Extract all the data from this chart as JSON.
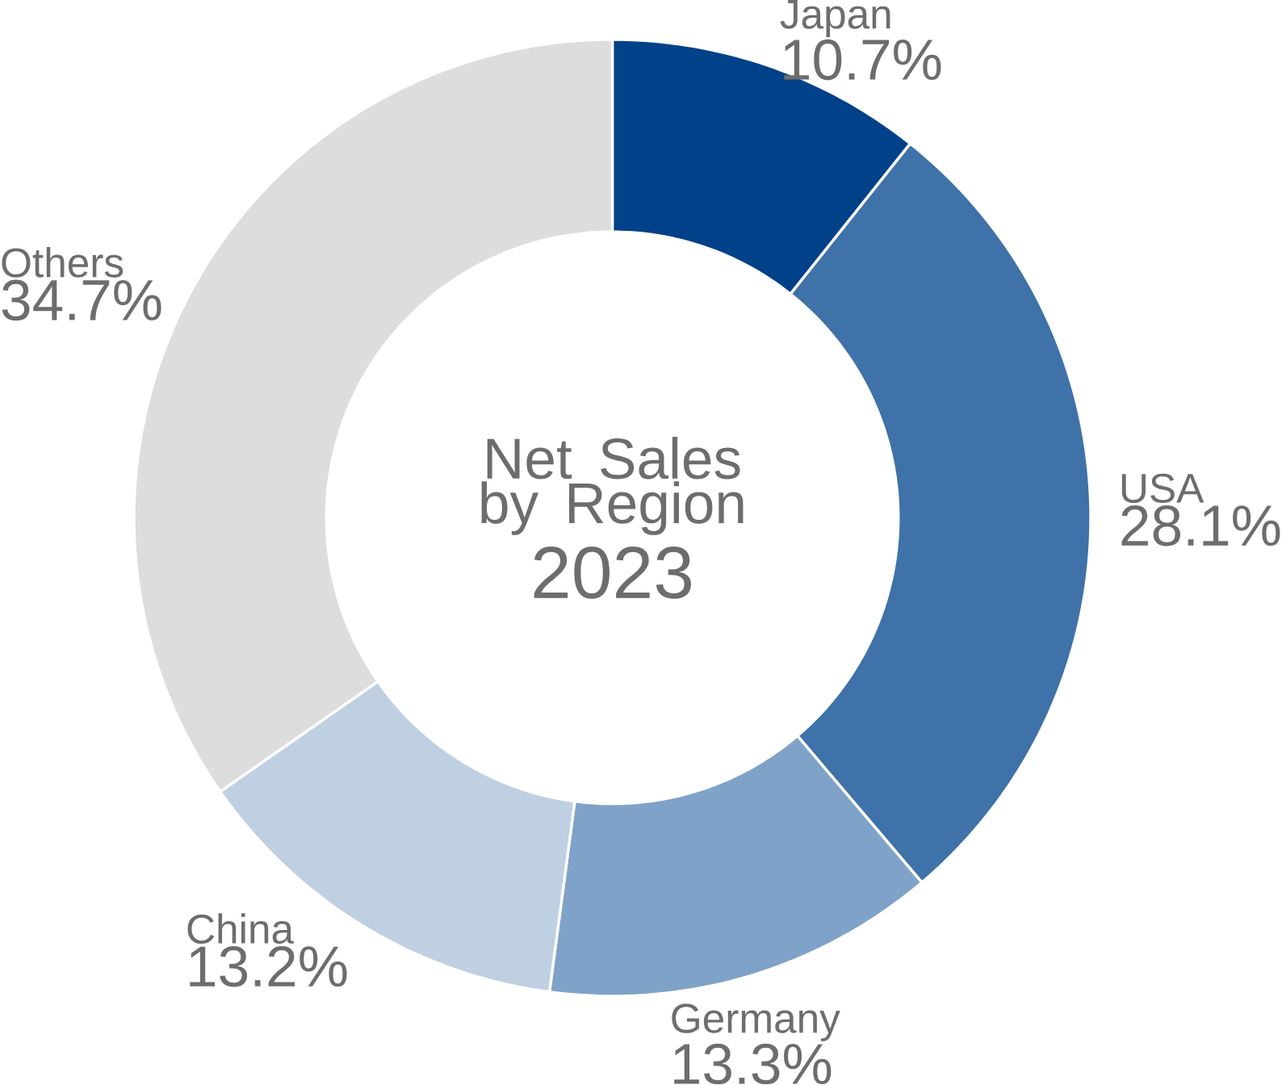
{
  "chart_data": {
    "type": "donut",
    "title": "Net Sales by Region",
    "subtitle": "2023",
    "categories": [
      "Japan",
      "USA",
      "Germany",
      "China",
      "Others"
    ],
    "values": [
      10.7,
      28.1,
      13.3,
      13.2,
      34.7
    ],
    "colors": [
      "#00418a",
      "#3e72a8",
      "#7fa2c8",
      "#bfd0e3",
      "#dddddd"
    ],
    "value_labels": [
      "10.7%",
      "28.1%",
      "13.3%",
      "13.2%",
      "34.7%"
    ]
  }
}
